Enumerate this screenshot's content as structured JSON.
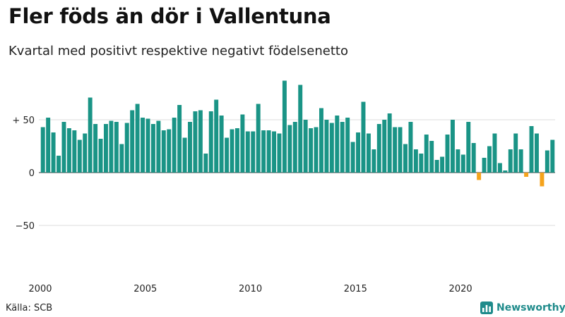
{
  "header": {
    "title": "Fler föds än dör i Vallentuna",
    "subtitle": "Kvartal med positivt respektive negativt födelsenetto"
  },
  "footer": {
    "source": "Källa: SCB",
    "brand": "Newsworthy"
  },
  "colors": {
    "positive": "#1a9486",
    "negative": "#f5a31c",
    "gridline": "#dddddd",
    "zeroline": "#333333",
    "brand": "#1f8b8b"
  },
  "chart_data": {
    "type": "bar",
    "title": "Fler föds än dör i Vallentuna",
    "subtitle": "Kvartal med positivt respektive negativt födelsenetto",
    "xlabel": "",
    "ylabel": "",
    "ylim": [
      -95,
      90
    ],
    "yticks": [
      {
        "value": 50,
        "label": "+ 50"
      },
      {
        "value": 0,
        "label": "0"
      },
      {
        "value": -50,
        "label": "−50"
      }
    ],
    "x_range": [
      2000,
      2024.75
    ],
    "xticks": [
      {
        "value": 2000,
        "label": "2000"
      },
      {
        "value": 2005,
        "label": "2005"
      },
      {
        "value": 2010,
        "label": "2010"
      },
      {
        "value": 2015,
        "label": "2015"
      },
      {
        "value": 2020,
        "label": "2020"
      }
    ],
    "grid": true,
    "legend": "none",
    "series": [
      {
        "start_year": 2000,
        "frequency": "quarterly",
        "values": [
          43,
          52,
          38,
          16,
          48,
          42,
          40,
          31,
          37,
          71,
          46,
          32,
          46,
          49,
          48,
          27,
          47,
          59,
          65,
          52,
          51,
          46,
          49,
          40,
          41,
          52,
          64,
          33,
          48,
          58,
          59,
          18,
          58,
          69,
          54,
          33,
          41,
          42,
          55,
          39,
          39,
          65,
          40,
          40,
          39,
          37,
          87,
          45,
          48,
          83,
          50,
          42,
          43,
          61,
          50,
          47,
          54,
          48,
          52,
          29,
          38,
          67,
          37,
          22,
          46,
          50,
          56,
          43,
          43,
          27,
          48,
          22,
          18,
          36,
          30,
          12,
          15,
          36,
          50,
          22,
          17,
          48,
          28,
          -7,
          14,
          25,
          37,
          9,
          2,
          22,
          37,
          22,
          -4,
          44,
          37,
          -13,
          21,
          31
        ]
      }
    ]
  }
}
